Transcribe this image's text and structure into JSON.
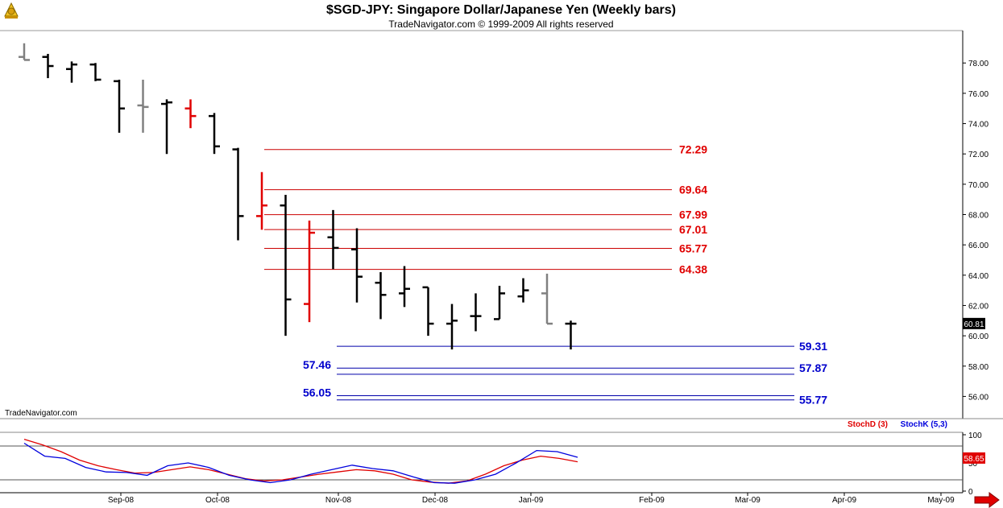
{
  "title": "$SGD-JPY:  Singapore Dollar/Japanese Yen  (Weekly bars)",
  "subtitle": "TradeNavigator.com © 1999-2009 All rights reserved",
  "watermark": "TradeNavigator.com",
  "logo_icon": "sextant-logo-icon",
  "scroll_icon": "right-arrow-icon",
  "colors": {
    "bar": "#000000",
    "bar_down_gray": "#808080",
    "bar_red": "#e00000",
    "resistance": "#cc0000",
    "support": "#0000aa",
    "stoch_d": "#e00000",
    "stoch_k": "#0000dd",
    "price_box_bg": "#000000",
    "stoch_box_bg": "#e00000"
  },
  "chart_data": [
    {
      "type": "ohlc",
      "title": "$SGD-JPY:  Singapore Dollar/Japanese Yen  (Weekly bars)",
      "ylim": [
        54.8,
        79.5
      ],
      "y_ticks": [
        56,
        58,
        60,
        62,
        64,
        66,
        68,
        70,
        72,
        74,
        76,
        78
      ],
      "y_tick_labels": [
        "56.00",
        "58.00",
        "60.00",
        "62.00",
        "64.00",
        "66.00",
        "68.00",
        "70.00",
        "72.00",
        "74.00",
        "76.00",
        "78.00"
      ],
      "x_labels": [
        "Sep-08",
        "Oct-08",
        "Nov-08",
        "Dec-08",
        "Jan-09",
        "Feb-09",
        "Mar-09",
        "Apr-09",
        "May-09"
      ],
      "last_price_label": "60.81",
      "bars": [
        {
          "o": 78.4,
          "h": 79.3,
          "l": 78.2,
          "c": 78.2,
          "color": "gray"
        },
        {
          "o": 78.4,
          "h": 78.6,
          "l": 77.0,
          "c": 77.8,
          "color": "black"
        },
        {
          "o": 77.6,
          "h": 78.1,
          "l": 76.7,
          "c": 77.9,
          "color": "black"
        },
        {
          "o": 77.9,
          "h": 78.0,
          "l": 76.8,
          "c": 76.9,
          "color": "black"
        },
        {
          "o": 76.8,
          "h": 76.9,
          "l": 73.4,
          "c": 75.0,
          "color": "black"
        },
        {
          "o": 75.2,
          "h": 76.9,
          "l": 73.4,
          "c": 75.1,
          "color": "gray"
        },
        {
          "o": 75.3,
          "h": 75.6,
          "l": 72.0,
          "c": 75.4,
          "color": "black"
        },
        {
          "o": 75.0,
          "h": 75.6,
          "l": 73.7,
          "c": 74.5,
          "color": "red"
        },
        {
          "o": 74.5,
          "h": 74.7,
          "l": 72.0,
          "c": 72.5,
          "color": "black"
        },
        {
          "o": 72.3,
          "h": 72.4,
          "l": 66.3,
          "c": 67.9,
          "color": "black"
        },
        {
          "o": 67.9,
          "h": 70.8,
          "l": 67.0,
          "c": 68.6,
          "color": "red"
        },
        {
          "o": 68.6,
          "h": 69.3,
          "l": 60.0,
          "c": 62.4,
          "color": "black"
        },
        {
          "o": 62.1,
          "h": 67.6,
          "l": 60.9,
          "c": 66.8,
          "color": "red"
        },
        {
          "o": 66.5,
          "h": 68.3,
          "l": 64.4,
          "c": 65.8,
          "color": "black"
        },
        {
          "o": 65.7,
          "h": 67.1,
          "l": 62.2,
          "c": 63.9,
          "color": "black"
        },
        {
          "o": 63.5,
          "h": 64.2,
          "l": 61.1,
          "c": 62.7,
          "color": "black"
        },
        {
          "o": 62.8,
          "h": 64.6,
          "l": 61.9,
          "c": 63.1,
          "color": "black"
        },
        {
          "o": 63.2,
          "h": 63.2,
          "l": 60.0,
          "c": 60.8,
          "color": "black"
        },
        {
          "o": 60.8,
          "h": 62.1,
          "l": 59.1,
          "c": 61.0,
          "color": "black"
        },
        {
          "o": 61.3,
          "h": 62.8,
          "l": 60.3,
          "c": 61.3,
          "color": "black"
        },
        {
          "o": 61.1,
          "h": 63.3,
          "l": 61.1,
          "c": 62.8,
          "color": "black"
        },
        {
          "o": 62.6,
          "h": 63.8,
          "l": 62.2,
          "c": 63.0,
          "color": "black"
        },
        {
          "o": 62.8,
          "h": 64.1,
          "l": 60.8,
          "c": 60.8,
          "color": "gray"
        },
        {
          "o": 60.8,
          "h": 61.0,
          "l": 59.1,
          "c": 60.8,
          "color": "black"
        }
      ],
      "resistance_levels": [
        {
          "value": 72.29,
          "label": "72.29"
        },
        {
          "value": 69.64,
          "label": "69.64"
        },
        {
          "value": 67.99,
          "label": "67.99"
        },
        {
          "value": 67.01,
          "label": "67.01"
        },
        {
          "value": 65.77,
          "label": "65.77"
        },
        {
          "value": 64.38,
          "label": "64.38"
        }
      ],
      "support_levels": [
        {
          "value": 59.31,
          "label": "59.31"
        },
        {
          "value": 57.87,
          "label": "57.87",
          "pair_label": "57.46"
        },
        {
          "value": 57.46,
          "label": ""
        },
        {
          "value": 56.05,
          "label": "",
          "pair_label": "56.05"
        },
        {
          "value": 55.77,
          "label": "55.77"
        }
      ]
    },
    {
      "type": "line",
      "title": "",
      "ylim": [
        0,
        100
      ],
      "y_ticks": [
        0,
        50,
        100
      ],
      "y_tick_labels": [
        "0",
        "50",
        "100"
      ],
      "guides": [
        20,
        80
      ],
      "last_value_label": "58.65",
      "series": [
        {
          "name": "StochD (3)",
          "color": "red",
          "values": [
            92,
            82,
            70,
            55,
            45,
            38,
            32,
            33,
            38,
            43,
            38,
            30,
            22,
            18,
            20,
            25,
            30,
            34,
            38,
            36,
            30,
            20,
            16,
            14,
            18,
            30,
            45,
            55,
            62,
            58,
            52
          ]
        },
        {
          "name": "StochK (5,3)",
          "color": "blue",
          "values": [
            85,
            62,
            58,
            42,
            34,
            33,
            28,
            45,
            50,
            42,
            28,
            20,
            15,
            20,
            30,
            38,
            46,
            40,
            36,
            25,
            15,
            14,
            20,
            30,
            50,
            72,
            70,
            60
          ]
        }
      ]
    }
  ]
}
